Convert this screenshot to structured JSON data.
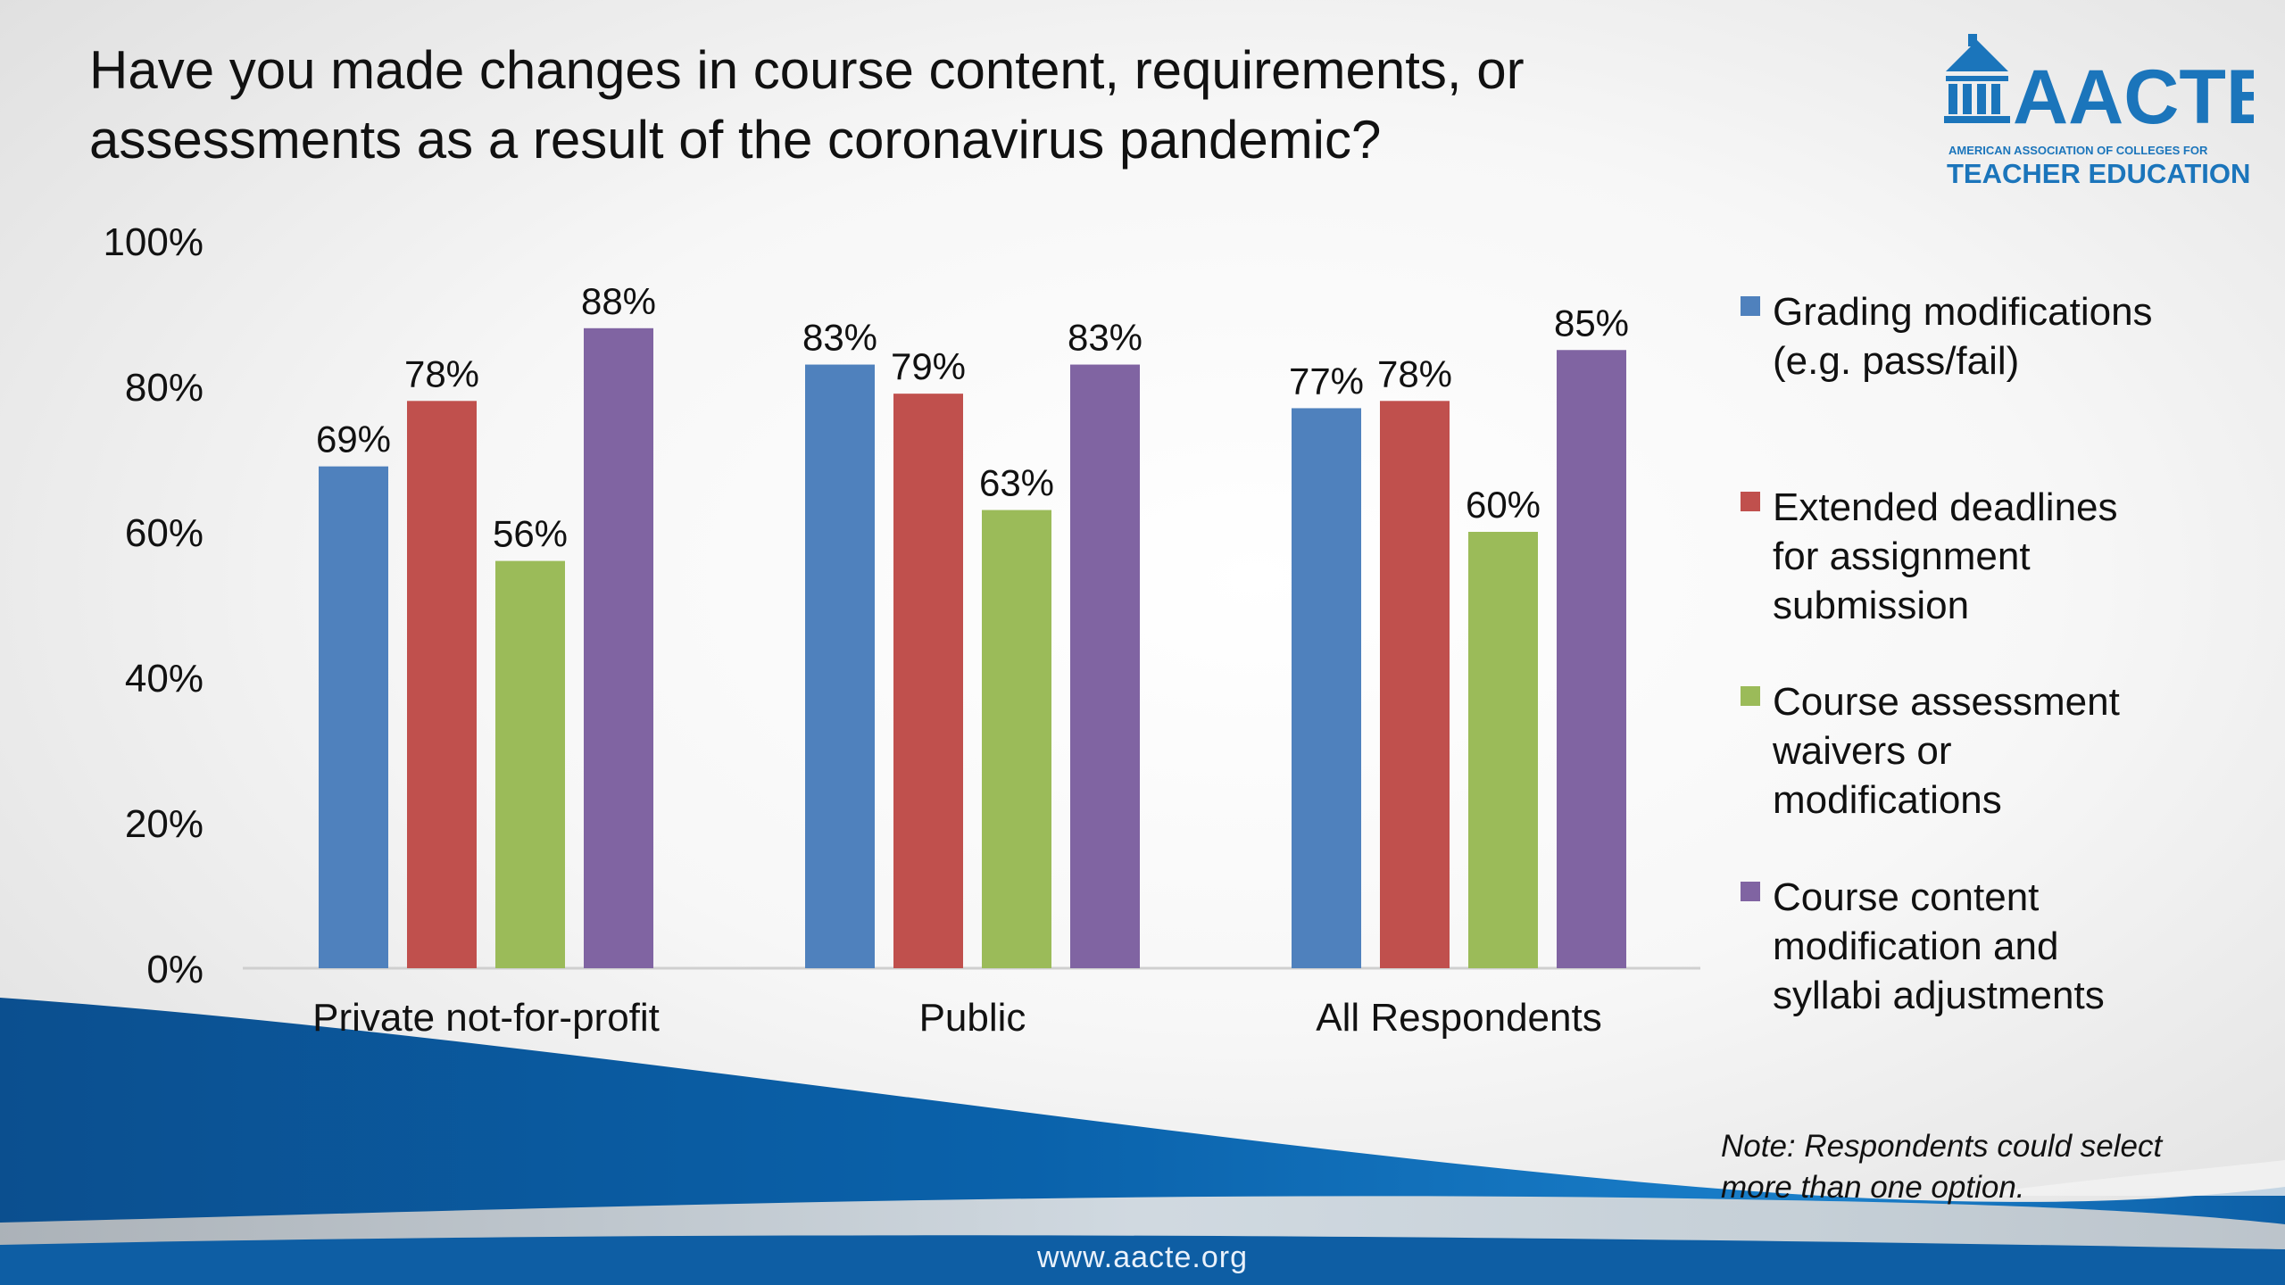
{
  "title": "Have you made changes in course content, requirements, or assessments as a result of the coronavirus pandemic?",
  "logo": {
    "name": "AACTE",
    "line1": "AMERICAN ASSOCIATION OF COLLEGES FOR",
    "line2": "TEACHER EDUCATION"
  },
  "chart_data": {
    "type": "bar",
    "title": "Have you made changes in course content, requirements, or assessments as a result of the coronavirus pandemic?",
    "categories": [
      "Private not-for-profit",
      "Public",
      "All Respondents"
    ],
    "series": [
      {
        "name": "Grading modifications (e.g. pass/fail)",
        "values": [
          69,
          83,
          77
        ],
        "color": "#4f81bd"
      },
      {
        "name": "Extended deadlines for assignment submission",
        "values": [
          78,
          79,
          78
        ],
        "color": "#c0504d"
      },
      {
        "name": "Course assessment waivers or modifications",
        "values": [
          56,
          63,
          60
        ],
        "color": "#9bbb59"
      },
      {
        "name": "Course content modification and syllabi adjustments",
        "values": [
          88,
          83,
          85
        ],
        "color": "#8064a2"
      }
    ],
    "value_format": "percent",
    "ylim": [
      0,
      100
    ],
    "yticks": [
      "0%",
      "20%",
      "40%",
      "60%",
      "80%",
      "100%"
    ],
    "xlabel": "",
    "ylabel": "",
    "grid": false,
    "legend_position": "right"
  },
  "legend": [
    {
      "lines": [
        "Grading modifications",
        "(e.g. pass/fail)"
      ],
      "color": "#4f81bd"
    },
    {
      "lines": [
        "Extended deadlines",
        "for assignment",
        "submission"
      ],
      "color": "#c0504d"
    },
    {
      "lines": [
        "Course assessment",
        "waivers or",
        "modifications"
      ],
      "color": "#9bbb59"
    },
    {
      "lines": [
        "Course content",
        "modification and",
        "syllabi adjustments"
      ],
      "color": "#8064a2"
    }
  ],
  "note": {
    "line1": "Note:  Respondents could select",
    "line2": "more than one option."
  },
  "footer": {
    "url": "www.aacte.org",
    "band_color": "#0a63ac"
  }
}
